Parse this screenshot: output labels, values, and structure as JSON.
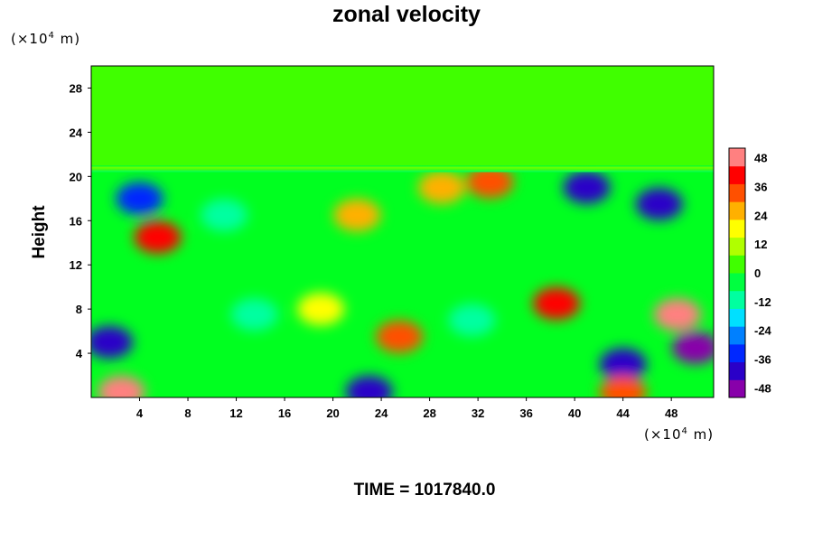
{
  "chart_data": {
    "type": "heatmap",
    "title": "zonal velocity",
    "ylabel": "Height",
    "y_unit": {
      "prefix": "(×10",
      "exp": "4",
      "suffix": " m)"
    },
    "x_unit": {
      "prefix": "(×10",
      "exp": "4",
      "suffix": " m)"
    },
    "xlim": [
      0,
      51.5
    ],
    "ylim": [
      0,
      30
    ],
    "x_ticks": [
      4,
      8,
      12,
      16,
      20,
      24,
      28,
      32,
      36,
      40,
      44,
      48
    ],
    "y_ticks": [
      4,
      8,
      12,
      16,
      20,
      24,
      28
    ],
    "colorbar": {
      "range": [
        -52,
        52
      ],
      "ticks": [
        48,
        36,
        24,
        12,
        0,
        -12,
        -24,
        -36,
        -48
      ],
      "colors": [
        "#8800aa",
        "#2a00c8",
        "#0028ff",
        "#0080ff",
        "#00e0ff",
        "#00ffa0",
        "#00ff40",
        "#40ff00",
        "#b0ff00",
        "#ffff00",
        "#ffb000",
        "#ff5000",
        "#ff0000",
        "#ff8080"
      ]
    },
    "field_summary": {
      "upper_layer": {
        "y_range": [
          21,
          30
        ],
        "value": 0
      },
      "features": [
        {
          "x": 2.5,
          "y": 0.5,
          "value": 48
        },
        {
          "x": 38.5,
          "y": 8.5,
          "value": 40
        },
        {
          "x": 48.5,
          "y": 7.5,
          "value": 46
        },
        {
          "x": 5.5,
          "y": 14.5,
          "value": 38
        },
        {
          "x": 25.5,
          "y": 5.5,
          "value": 32
        },
        {
          "x": 29,
          "y": 19,
          "value": 28
        },
        {
          "x": 33,
          "y": 19.5,
          "value": 34
        },
        {
          "x": 22,
          "y": 16.5,
          "value": 26
        },
        {
          "x": 1.5,
          "y": 5,
          "value": -38
        },
        {
          "x": 4,
          "y": 18,
          "value": -36
        },
        {
          "x": 41,
          "y": 19,
          "value": -42
        },
        {
          "x": 47,
          "y": 17.5,
          "value": -44
        },
        {
          "x": 23,
          "y": 0.5,
          "value": -38
        },
        {
          "x": 44,
          "y": 3,
          "value": -38
        },
        {
          "x": 50,
          "y": 4.5,
          "value": -48
        },
        {
          "x": 19,
          "y": 8,
          "value": 20
        },
        {
          "x": 13.5,
          "y": 7.5,
          "value": -12
        },
        {
          "x": 31.5,
          "y": 7,
          "value": -14
        },
        {
          "x": 11,
          "y": 16.5,
          "value": -10
        },
        {
          "x": 44,
          "y": 0.5,
          "value": 36
        }
      ]
    }
  },
  "footer": {
    "time_label": "TIME = 1017840.0"
  }
}
